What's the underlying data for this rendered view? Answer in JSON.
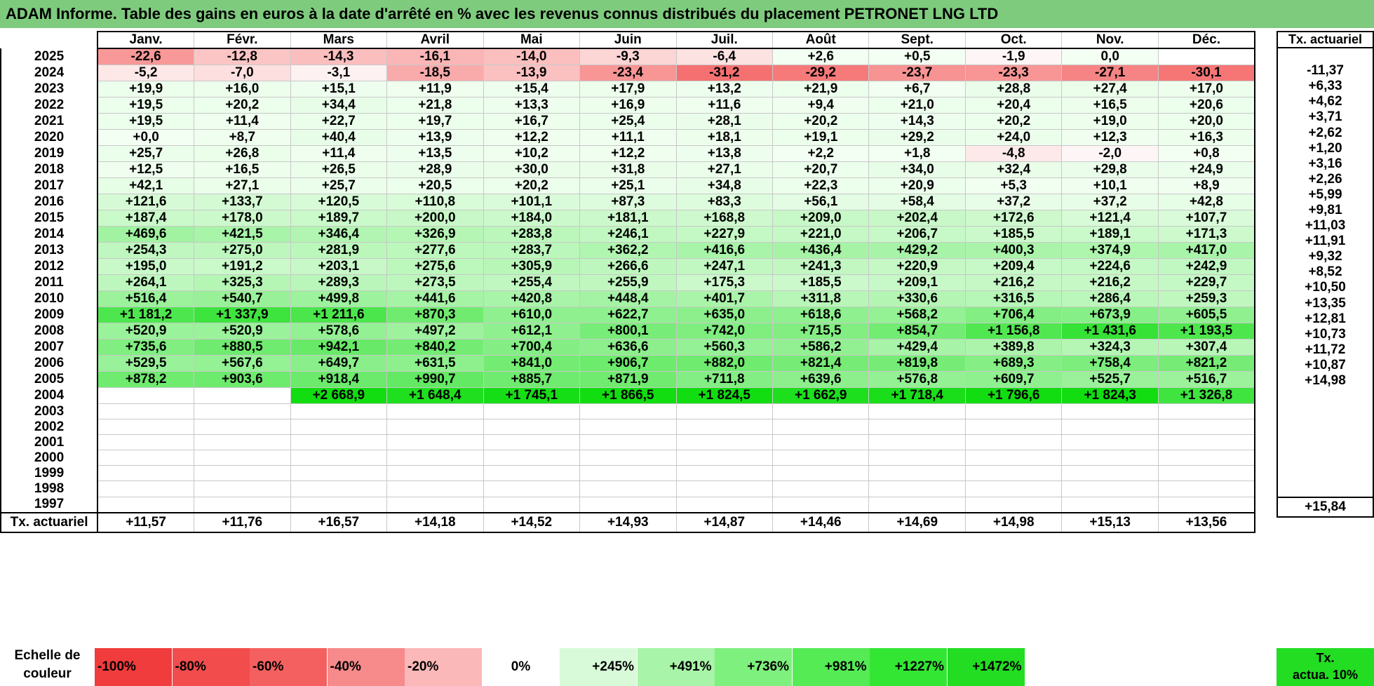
{
  "title": "ADAM Informe. Table des gains en euros à la date d'arrêté en % avec les revenus connus distribués du placement PETRONET LNG LTD",
  "months": [
    "Janv.",
    "Févr.",
    "Mars",
    "Avril",
    "Mai",
    "Juin",
    "Juil.",
    "Août",
    "Sept.",
    "Oct.",
    "Nov.",
    "Déc."
  ],
  "side_header": "Tx. actuariel",
  "rows": [
    {
      "year": "2025",
      "values": [
        "-22,6",
        "-12,8",
        "-14,3",
        "-16,1",
        "-14,0",
        "-9,3",
        "-6,4",
        "+2,6",
        "+0,5",
        "-1,9",
        "0,0",
        ""
      ],
      "rate": ""
    },
    {
      "year": "2024",
      "values": [
        "-5,2",
        "-7,0",
        "-3,1",
        "-18,5",
        "-13,9",
        "-23,4",
        "-31,2",
        "-29,2",
        "-23,7",
        "-23,3",
        "-27,1",
        "-30,1"
      ],
      "rate": "-11,37"
    },
    {
      "year": "2023",
      "values": [
        "+19,9",
        "+16,0",
        "+15,1",
        "+11,9",
        "+15,4",
        "+17,9",
        "+13,2",
        "+21,9",
        "+6,7",
        "+28,8",
        "+27,4",
        "+17,0"
      ],
      "rate": "+6,33"
    },
    {
      "year": "2022",
      "values": [
        "+19,5",
        "+20,2",
        "+34,4",
        "+21,8",
        "+13,3",
        "+16,9",
        "+11,6",
        "+9,4",
        "+21,0",
        "+20,4",
        "+16,5",
        "+20,6"
      ],
      "rate": "+4,62"
    },
    {
      "year": "2021",
      "values": [
        "+19,5",
        "+11,4",
        "+22,7",
        "+19,7",
        "+16,7",
        "+25,4",
        "+28,1",
        "+20,2",
        "+14,3",
        "+20,2",
        "+19,0",
        "+20,0"
      ],
      "rate": "+3,71"
    },
    {
      "year": "2020",
      "values": [
        "+0,0",
        "+8,7",
        "+40,4",
        "+13,9",
        "+12,2",
        "+11,1",
        "+18,1",
        "+19,1",
        "+29,2",
        "+24,0",
        "+12,3",
        "+16,3"
      ],
      "rate": "+2,62"
    },
    {
      "year": "2019",
      "values": [
        "+25,7",
        "+26,8",
        "+11,4",
        "+13,5",
        "+10,2",
        "+12,2",
        "+13,8",
        "+2,2",
        "+1,8",
        "-4,8",
        "-2,0",
        "+0,8"
      ],
      "rate": "+1,20"
    },
    {
      "year": "2018",
      "values": [
        "+12,5",
        "+16,5",
        "+26,5",
        "+28,9",
        "+30,0",
        "+31,8",
        "+27,1",
        "+20,7",
        "+34,0",
        "+32,4",
        "+29,8",
        "+24,9"
      ],
      "rate": "+3,16"
    },
    {
      "year": "2017",
      "values": [
        "+42,1",
        "+27,1",
        "+25,7",
        "+20,5",
        "+20,2",
        "+25,1",
        "+34,8",
        "+22,3",
        "+20,9",
        "+5,3",
        "+10,1",
        "+8,9"
      ],
      "rate": "+2,26"
    },
    {
      "year": "2016",
      "values": [
        "+121,6",
        "+133,7",
        "+120,5",
        "+110,8",
        "+101,1",
        "+87,3",
        "+83,3",
        "+56,1",
        "+58,4",
        "+37,2",
        "+37,2",
        "+42,8"
      ],
      "rate": "+5,99"
    },
    {
      "year": "2015",
      "values": [
        "+187,4",
        "+178,0",
        "+189,7",
        "+200,0",
        "+184,0",
        "+181,1",
        "+168,8",
        "+209,0",
        "+202,4",
        "+172,6",
        "+121,4",
        "+107,7"
      ],
      "rate": "+9,81"
    },
    {
      "year": "2014",
      "values": [
        "+469,6",
        "+421,5",
        "+346,4",
        "+326,9",
        "+283,8",
        "+246,1",
        "+227,9",
        "+221,0",
        "+206,7",
        "+185,5",
        "+189,1",
        "+171,3"
      ],
      "rate": "+11,03"
    },
    {
      "year": "2013",
      "values": [
        "+254,3",
        "+275,0",
        "+281,9",
        "+277,6",
        "+283,7",
        "+362,2",
        "+416,6",
        "+436,4",
        "+429,2",
        "+400,3",
        "+374,9",
        "+417,0"
      ],
      "rate": "+11,91"
    },
    {
      "year": "2012",
      "values": [
        "+195,0",
        "+191,2",
        "+203,1",
        "+275,6",
        "+305,9",
        "+266,6",
        "+247,1",
        "+241,3",
        "+220,9",
        "+209,4",
        "+224,6",
        "+242,9"
      ],
      "rate": "+9,32"
    },
    {
      "year": "2011",
      "values": [
        "+264,1",
        "+325,3",
        "+289,3",
        "+273,5",
        "+255,4",
        "+255,9",
        "+175,3",
        "+185,5",
        "+209,1",
        "+216,2",
        "+216,2",
        "+229,7"
      ],
      "rate": "+8,52"
    },
    {
      "year": "2010",
      "values": [
        "+516,4",
        "+540,7",
        "+499,8",
        "+441,6",
        "+420,8",
        "+448,4",
        "+401,7",
        "+311,8",
        "+330,6",
        "+316,5",
        "+286,4",
        "+259,3"
      ],
      "rate": "+10,50"
    },
    {
      "year": "2009",
      "values": [
        "+1 181,2",
        "+1 337,9",
        "+1 211,6",
        "+870,3",
        "+610,0",
        "+622,7",
        "+635,0",
        "+618,6",
        "+568,2",
        "+706,4",
        "+673,9",
        "+605,5"
      ],
      "rate": "+13,35"
    },
    {
      "year": "2008",
      "values": [
        "+520,9",
        "+520,9",
        "+578,6",
        "+497,2",
        "+612,1",
        "+800,1",
        "+742,0",
        "+715,5",
        "+854,7",
        "+1 156,8",
        "+1 431,6",
        "+1 193,5"
      ],
      "rate": "+12,81"
    },
    {
      "year": "2007",
      "values": [
        "+735,6",
        "+880,5",
        "+942,1",
        "+840,2",
        "+700,4",
        "+636,6",
        "+560,3",
        "+586,2",
        "+429,4",
        "+389,8",
        "+324,3",
        "+307,4"
      ],
      "rate": "+10,73"
    },
    {
      "year": "2006",
      "values": [
        "+529,5",
        "+567,6",
        "+649,7",
        "+631,5",
        "+841,0",
        "+906,7",
        "+882,0",
        "+821,4",
        "+819,8",
        "+689,3",
        "+758,4",
        "+821,2"
      ],
      "rate": "+11,72"
    },
    {
      "year": "2005",
      "values": [
        "+878,2",
        "+903,6",
        "+918,4",
        "+990,7",
        "+885,7",
        "+871,9",
        "+711,8",
        "+639,6",
        "+576,8",
        "+609,7",
        "+525,7",
        "+516,7"
      ],
      "rate": "+10,87"
    },
    {
      "year": "2004",
      "values": [
        "",
        "",
        "+2 668,9",
        "+1 648,4",
        "+1 745,1",
        "+1 866,5",
        "+1 824,5",
        "+1 662,9",
        "+1 718,4",
        "+1 796,6",
        "+1 824,3",
        "+1 326,8"
      ],
      "rate": "+14,98"
    },
    {
      "year": "2003",
      "values": [
        "",
        "",
        "",
        "",
        "",
        "",
        "",
        "",
        "",
        "",
        "",
        ""
      ],
      "rate": ""
    },
    {
      "year": "2002",
      "values": [
        "",
        "",
        "",
        "",
        "",
        "",
        "",
        "",
        "",
        "",
        "",
        ""
      ],
      "rate": ""
    },
    {
      "year": "2001",
      "values": [
        "",
        "",
        "",
        "",
        "",
        "",
        "",
        "",
        "",
        "",
        "",
        ""
      ],
      "rate": ""
    },
    {
      "year": "2000",
      "values": [
        "",
        "",
        "",
        "",
        "",
        "",
        "",
        "",
        "",
        "",
        "",
        ""
      ],
      "rate": ""
    },
    {
      "year": "1999",
      "values": [
        "",
        "",
        "",
        "",
        "",
        "",
        "",
        "",
        "",
        "",
        "",
        ""
      ],
      "rate": ""
    },
    {
      "year": "1998",
      "values": [
        "",
        "",
        "",
        "",
        "",
        "",
        "",
        "",
        "",
        "",
        "",
        ""
      ],
      "rate": ""
    },
    {
      "year": "1997",
      "values": [
        "",
        "",
        "",
        "",
        "",
        "",
        "",
        "",
        "",
        "",
        "",
        ""
      ],
      "rate": ""
    }
  ],
  "footer": {
    "label": "Tx. actuariel",
    "values": [
      "+11,57",
      "+11,76",
      "+16,57",
      "+14,18",
      "+14,52",
      "+14,93",
      "+14,87",
      "+14,46",
      "+14,69",
      "+14,98",
      "+15,13",
      "+13,56"
    ],
    "rate": "+15,84"
  },
  "legend": {
    "label_line1": "Echelle de",
    "label_line2": "couleur",
    "items": [
      {
        "text": "-100%",
        "color": "#F03C3C"
      },
      {
        "text": "-80%",
        "color": "#F24C4C"
      },
      {
        "text": "-60%",
        "color": "#F46060"
      },
      {
        "text": "-40%",
        "color": "#F78A8A"
      },
      {
        "text": "-20%",
        "color": "#FBB8B8"
      },
      {
        "text": "0%",
        "color": "#FFFFFF"
      },
      {
        "text": "+245%",
        "color": "#D8FAD8"
      },
      {
        "text": "+491%",
        "color": "#A8F4A8"
      },
      {
        "text": "+736%",
        "color": "#7EF07E"
      },
      {
        "text": "+981%",
        "color": "#55EB55"
      },
      {
        "text": "+1227%",
        "color": "#33E633"
      },
      {
        "text": "+1472%",
        "color": "#22DD22"
      }
    ],
    "side_line1": "Tx.",
    "side_line2": "actua. 10%"
  }
}
